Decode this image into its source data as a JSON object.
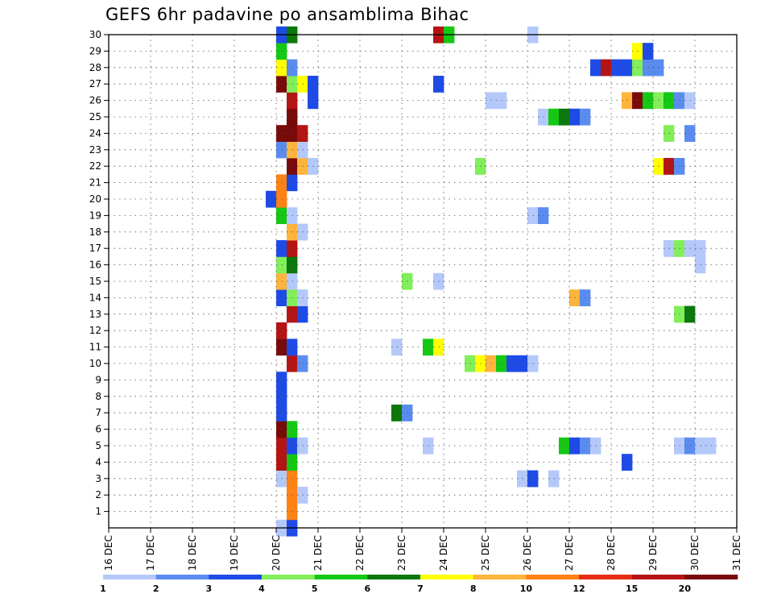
{
  "title": "GEFS 6hr padavine po ansamblima Bihac",
  "chart_data": {
    "type": "heatmap",
    "title": "GEFS 6hr padavine po ansamblima Bihac",
    "x_ticks": [
      "16 DEC",
      "17 DEC",
      "18 DEC",
      "19 DEC",
      "20 DEC",
      "21 DEC",
      "22 DEC",
      "23 DEC",
      "24 DEC",
      "25 DEC",
      "26 DEC",
      "27 DEC",
      "28 DEC",
      "29 DEC",
      "30 DEC",
      "31 DEC"
    ],
    "y_ticks": [
      "1",
      "2",
      "3",
      "4",
      "5",
      "6",
      "7",
      "8",
      "9",
      "10",
      "11",
      "12",
      "13",
      "14",
      "15",
      "16",
      "17",
      "18",
      "19",
      "20",
      "21",
      "22",
      "23",
      "24",
      "25",
      "26",
      "27",
      "28",
      "29",
      "30"
    ],
    "x_range": [
      "16 DEC",
      "31 DEC"
    ],
    "y_range": [
      0,
      30
    ],
    "grid": true,
    "colorbar": {
      "position": "bottom",
      "labels": [
        "1",
        "2",
        "3",
        "4",
        "5",
        "6",
        "7",
        "8",
        "10",
        "12",
        "15",
        "20"
      ],
      "colors": [
        "#b4c8fa",
        "#5a8cf0",
        "#1e4be6",
        "#82ee5a",
        "#14c814",
        "#0a780a",
        "#ffff00",
        "#ffb43c",
        "#ff8214",
        "#e62d14",
        "#b41414",
        "#780a0a"
      ]
    },
    "cells": [
      [
        0,
        20.0,
        1
      ],
      [
        0,
        20.25,
        3
      ],
      [
        1,
        20.25,
        9
      ],
      [
        2,
        20.25,
        9
      ],
      [
        2,
        20.5,
        1
      ],
      [
        3,
        20.0,
        1
      ],
      [
        3,
        20.25,
        9
      ],
      [
        3,
        25.75,
        1
      ],
      [
        3,
        26.0,
        3
      ],
      [
        3,
        26.5,
        1
      ],
      [
        4,
        20.0,
        11
      ],
      [
        4,
        20.25,
        5
      ],
      [
        4,
        28.25,
        3
      ],
      [
        5,
        20.0,
        11
      ],
      [
        5,
        20.25,
        3
      ],
      [
        5,
        20.5,
        1
      ],
      [
        5,
        23.5,
        1
      ],
      [
        5,
        26.75,
        5
      ],
      [
        5,
        27.0,
        3
      ],
      [
        5,
        27.25,
        2
      ],
      [
        5,
        27.5,
        1
      ],
      [
        5,
        29.5,
        1
      ],
      [
        5,
        29.75,
        2
      ],
      [
        5,
        30.0,
        1
      ],
      [
        5,
        30.25,
        1
      ],
      [
        6,
        20.0,
        12
      ],
      [
        6,
        20.25,
        5
      ],
      [
        7,
        20.0,
        3
      ],
      [
        7,
        22.75,
        6
      ],
      [
        7,
        23.0,
        2
      ],
      [
        8,
        20.0,
        3
      ],
      [
        9,
        20.0,
        3
      ],
      [
        10,
        20.25,
        11
      ],
      [
        10,
        20.5,
        2
      ],
      [
        10,
        24.5,
        4
      ],
      [
        10,
        24.75,
        7
      ],
      [
        10,
        25.0,
        8
      ],
      [
        10,
        25.25,
        5
      ],
      [
        10,
        25.5,
        3
      ],
      [
        10,
        25.75,
        3
      ],
      [
        10,
        26.0,
        1
      ],
      [
        11,
        20.0,
        12
      ],
      [
        11,
        20.25,
        3
      ],
      [
        11,
        22.75,
        1
      ],
      [
        11,
        23.5,
        5
      ],
      [
        11,
        23.75,
        7
      ],
      [
        12,
        20.0,
        11
      ],
      [
        13,
        20.25,
        11
      ],
      [
        13,
        20.5,
        3
      ],
      [
        13,
        29.5,
        4
      ],
      [
        13,
        29.75,
        6
      ],
      [
        14,
        20.0,
        3
      ],
      [
        14,
        20.25,
        4
      ],
      [
        14,
        20.5,
        1
      ],
      [
        14,
        27.0,
        8
      ],
      [
        14,
        27.25,
        2
      ],
      [
        15,
        20.0,
        8
      ],
      [
        15,
        20.25,
        1
      ],
      [
        15,
        23.0,
        4
      ],
      [
        15,
        23.75,
        1
      ],
      [
        16,
        20.0,
        4
      ],
      [
        16,
        20.25,
        6
      ],
      [
        16,
        30.0,
        1
      ],
      [
        17,
        20.0,
        3
      ],
      [
        17,
        20.25,
        11
      ],
      [
        17,
        29.25,
        1
      ],
      [
        17,
        29.5,
        4
      ],
      [
        17,
        29.75,
        1
      ],
      [
        17,
        30.0,
        1
      ],
      [
        18,
        20.25,
        8
      ],
      [
        18,
        20.5,
        1
      ],
      [
        19,
        20.0,
        5
      ],
      [
        19,
        20.25,
        1
      ],
      [
        19,
        26.0,
        1
      ],
      [
        19,
        26.25,
        2
      ],
      [
        20,
        19.75,
        3
      ],
      [
        20,
        20.0,
        9
      ],
      [
        21,
        20.0,
        9
      ],
      [
        21,
        20.25,
        3
      ],
      [
        22,
        20.25,
        12
      ],
      [
        22,
        20.5,
        8
      ],
      [
        22,
        20.75,
        1
      ],
      [
        22,
        24.75,
        4
      ],
      [
        22,
        29.0,
        7
      ],
      [
        22,
        29.25,
        11
      ],
      [
        22,
        29.5,
        2
      ],
      [
        23,
        20.0,
        2
      ],
      [
        23,
        20.25,
        8
      ],
      [
        23,
        20.5,
        1
      ],
      [
        24,
        20.0,
        12
      ],
      [
        24,
        20.25,
        12
      ],
      [
        24,
        20.5,
        11
      ],
      [
        24,
        29.25,
        4
      ],
      [
        24,
        29.75,
        2
      ],
      [
        25,
        20.25,
        12
      ],
      [
        25,
        26.25,
        1
      ],
      [
        25,
        26.5,
        5
      ],
      [
        25,
        26.75,
        6
      ],
      [
        25,
        27.0,
        3
      ],
      [
        25,
        27.25,
        2
      ],
      [
        26,
        20.25,
        11
      ],
      [
        26,
        20.75,
        3
      ],
      [
        26,
        25.0,
        1
      ],
      [
        26,
        25.25,
        1
      ],
      [
        26,
        28.25,
        8
      ],
      [
        26,
        28.5,
        12
      ],
      [
        26,
        28.75,
        5
      ],
      [
        26,
        29.0,
        4
      ],
      [
        26,
        29.25,
        5
      ],
      [
        26,
        29.5,
        2
      ],
      [
        26,
        29.75,
        1
      ],
      [
        27,
        20.0,
        12
      ],
      [
        27,
        20.25,
        4
      ],
      [
        27,
        20.5,
        7
      ],
      [
        27,
        20.75,
        3
      ],
      [
        27,
        23.75,
        3
      ],
      [
        28,
        20.0,
        7
      ],
      [
        28,
        20.25,
        2
      ],
      [
        28,
        27.5,
        3
      ],
      [
        28,
        27.75,
        11
      ],
      [
        28,
        28.0,
        3
      ],
      [
        28,
        28.25,
        3
      ],
      [
        28,
        28.5,
        4
      ],
      [
        28,
        28.75,
        2
      ],
      [
        28,
        29.0,
        2
      ],
      [
        29,
        20.0,
        5
      ],
      [
        29,
        28.5,
        7
      ],
      [
        29,
        28.75,
        3
      ],
      [
        30,
        20.0,
        3
      ],
      [
        30,
        20.25,
        6
      ],
      [
        30,
        23.75,
        11
      ],
      [
        30,
        24.0,
        5
      ],
      [
        30,
        26.0,
        1
      ]
    ]
  }
}
